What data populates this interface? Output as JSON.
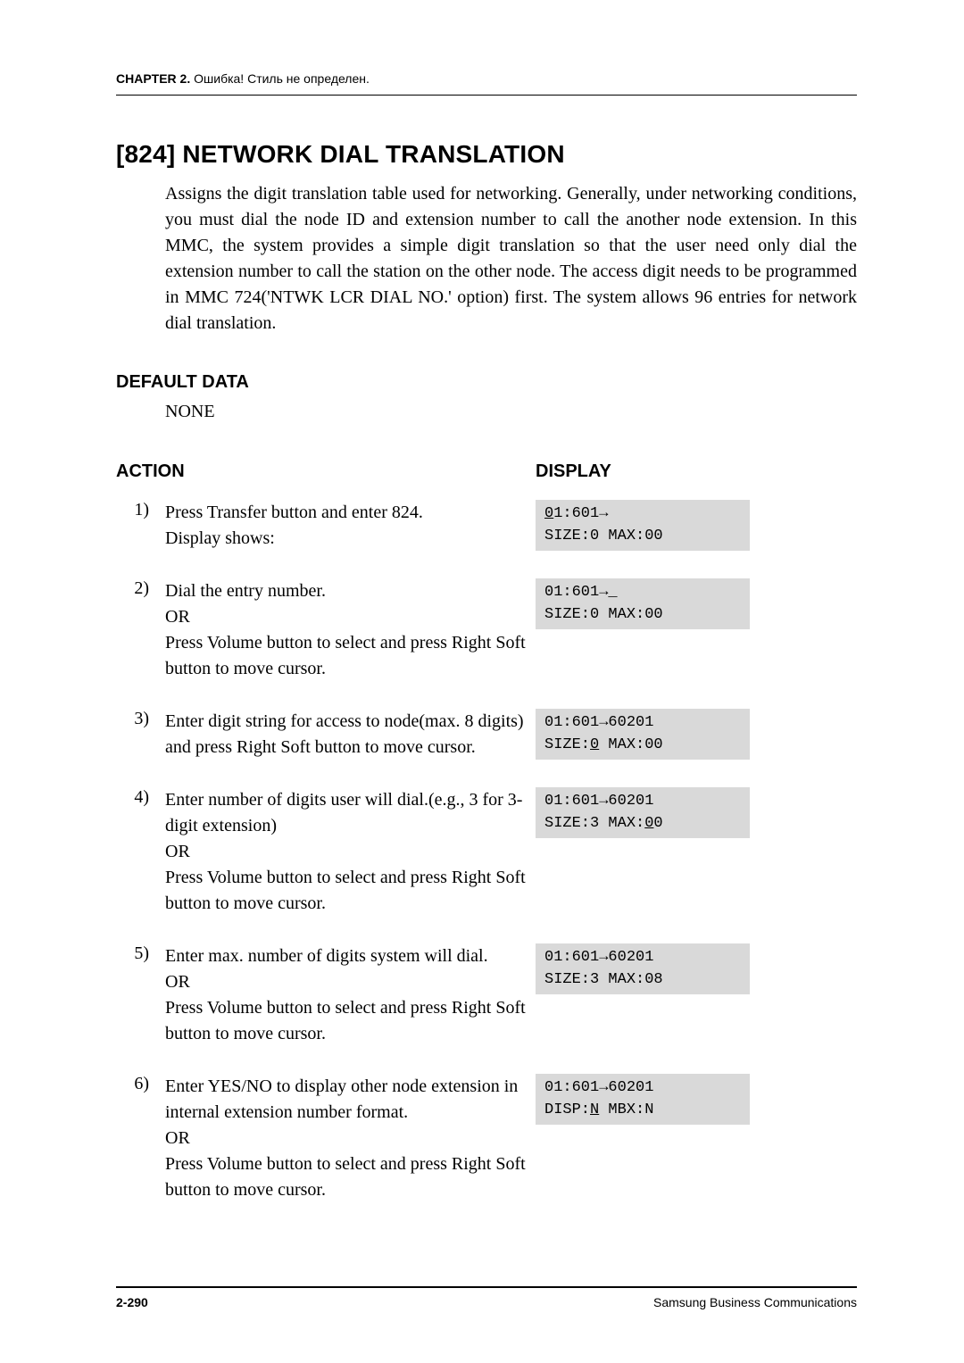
{
  "colors": {
    "page_bg": "#ffffff",
    "text": "#000000",
    "display_bg": "#d9d9d9",
    "rule": "#000000"
  },
  "fonts": {
    "body": "Times New Roman",
    "headings": "Arial",
    "display": "Courier New",
    "section_title_pt": 28,
    "h2_pt": 20,
    "body_pt": 20,
    "running_head_pt": 14,
    "footer_pt": 14,
    "display_pt": 17
  },
  "header": {
    "chapter_label": "CHAPTER 2.",
    "chapter_note": " Ошибка! Стиль не определен."
  },
  "section": {
    "title": "[824] NETWORK DIAL TRANSLATION",
    "intro": "Assigns the digit translation table used for networking. Generally, under networking conditions, you must dial the node ID and extension number to call the another node extension. In this MMC, the system provides a simple digit translation so that the user need only dial the extension number to call the station on the other node. The access digit needs to be programmed in MMC 724('NTWK LCR DIAL NO.' option) first. The system allows 96 entries for network dial translation."
  },
  "default_data": {
    "heading": "DEFAULT DATA",
    "value": "NONE"
  },
  "action_heading": "ACTION",
  "display_heading": "DISPLAY",
  "steps": [
    {
      "num": "1)",
      "action": "Press Transfer button and enter 824.\nDisplay shows:",
      "display_line1_pre": "",
      "display_line1_u": "0",
      "display_line1_post": "1:601→",
      "display_line2": "SIZE:0 MAX:00"
    },
    {
      "num": "2)",
      "action": "Dial the entry number.\nOR\nPress Volume button to select and press Right Soft button to move cursor.",
      "display_line1_pre": "01:601→",
      "display_line1_u": "",
      "display_line1_post": "_",
      "display_line2": "SIZE:0 MAX:00"
    },
    {
      "num": "3)",
      "action": "Enter digit string for access to node(max. 8 digits) and press Right Soft button to move cursor.",
      "display_line1_pre": "01:601→60201",
      "display_line1_u": "",
      "display_line1_post": "",
      "display_line2_pre": "SIZE:",
      "display_line2_u": "0",
      "display_line2_post": " MAX:00"
    },
    {
      "num": "4)",
      "action": "Enter number of digits user will dial.(e.g., 3 for 3-digit extension)\nOR\nPress Volume button to select and press Right Soft button to move cursor.",
      "display_line1_pre": "01:601→60201",
      "display_line1_u": "",
      "display_line1_post": "",
      "display_line2_pre": "SIZE:3 MAX:",
      "display_line2_u": "0",
      "display_line2_post": "0"
    },
    {
      "num": "5)",
      "action": "Enter max. number of digits system will dial.\nOR\nPress Volume button to select and press Right Soft button to move cursor.",
      "display_line1_pre": "01:601→60201",
      "display_line1_u": "",
      "display_line1_post": "",
      "display_line2": "SIZE:3 MAX:08"
    },
    {
      "num": "6)",
      "action": "Enter YES/NO to display other node extension in internal extension number format.\nOR\nPress Volume button to select and press Right Soft button to move cursor.",
      "display_line1_pre": "01:601→60201",
      "display_line1_u": "",
      "display_line1_post": "",
      "display_line2_pre": "DISP:",
      "display_line2_u": "N",
      "display_line2_post": " MBX:N"
    }
  ],
  "footer": {
    "page": "2-290",
    "owner": "Samsung Business Communications"
  }
}
